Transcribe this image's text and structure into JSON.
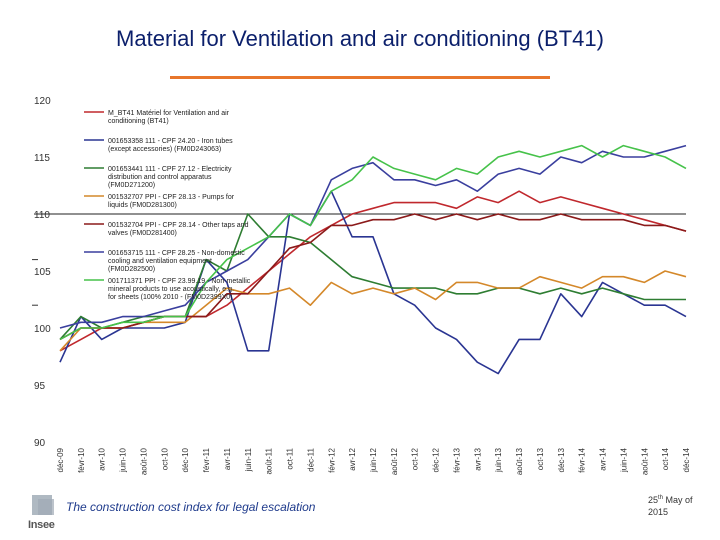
{
  "slide": {
    "title": "Material for Ventilation and air conditioning (BT41)",
    "footer_text": "The construction cost index for legal escalation",
    "logo_text": "Insee",
    "date_day": "25",
    "date_suffix": "th",
    "date_rest": " May of",
    "date_year": "2015"
  },
  "colors": {
    "title": "#0b1f6b",
    "accent_rule": "#e8762b"
  },
  "chart_data": {
    "type": "line",
    "title": "",
    "xlabel": "",
    "ylabel": "",
    "ylim": [
      90,
      120
    ],
    "yticks": [
      90,
      95,
      100,
      105,
      110,
      115,
      120
    ],
    "reference_line": 110,
    "x": [
      "déc-09",
      "févr-10",
      "avr-10",
      "juin-10",
      "août-10",
      "oct-10",
      "déc-10",
      "févr-11",
      "avr-11",
      "juin-11",
      "août-11",
      "oct-11",
      "déc-11",
      "févr-12",
      "avr-12",
      "juin-12",
      "août-12",
      "oct-12",
      "déc-12",
      "févr-13",
      "avr-13",
      "juin-13",
      "août-13",
      "oct-13",
      "déc-13",
      "févr-14",
      "avr-14",
      "juin-14",
      "août-14",
      "oct-14",
      "déc-14"
    ],
    "legend": [
      "M_BT41 Matériel for Ventilation and air conditioning (BT41)",
      "001653358 111 - CPF 24.20 - Iron tubes (except accessories) (FM0D243063)",
      "001653441 111 - CPF 27.12 - Electricity distribution and control apparatus (FM0D271200)",
      "001532707 PPI - CPF 28.13 - Pumps for liquids (FM0D281300)",
      "001532704 PPI - CPF 28.14 - Other taps and valves (FM0D281400)",
      "001653715 111 - CPF 28.25 - Non-domestic cooling and ventilation equipment (FM0D282500)",
      "001711371 PPI - CPF 23.99.19 - Non-metallic mineral products to use acoustically, e.g. for sheets (100% 2010 - (FM0D2399X0)"
    ],
    "series": [
      {
        "name": "M_BT41 Matériel for Ventilation and air conditioning (BT41)",
        "color": "#c0282d",
        "values": [
          98,
          99,
          100,
          100,
          100.5,
          101,
          101,
          101,
          102,
          103.5,
          105,
          106.5,
          108,
          109,
          110,
          110.5,
          111,
          111,
          111,
          110.5,
          111.5,
          111,
          112,
          111,
          111.5,
          111,
          110.5,
          110,
          109.5,
          109,
          108.5
        ]
      },
      {
        "name": "001653358 111 - CPF 24.20 - Iron tubes (except accessories) (FM0D243063)",
        "color": "#2a3592",
        "values": [
          97,
          101,
          99,
          100,
          100,
          100,
          100.5,
          106,
          104,
          98,
          98,
          110,
          109,
          112,
          108,
          108,
          103,
          102,
          100,
          99,
          97,
          96,
          99,
          99,
          103,
          101,
          104,
          103,
          102,
          102,
          101
        ]
      },
      {
        "name": "001653441 111 - CPF 27.12 - Electricity distribution and control apparatus (FM0D271200)",
        "color": "#2e7d32",
        "values": [
          99,
          101,
          100,
          100.5,
          101,
          101,
          101,
          106,
          105,
          110,
          108,
          108,
          107.5,
          106,
          104.5,
          104,
          103.5,
          103.5,
          103.5,
          103,
          103,
          103.5,
          103.5,
          103,
          103.5,
          103,
          103.5,
          103,
          102.5,
          102.5,
          102.5
        ]
      },
      {
        "name": "001532707 PPI - CPF 28.13 - Pumps for liquids (FM0D281300)",
        "color": "#d4882a",
        "values": [
          98,
          100,
          100,
          100,
          100.5,
          100.5,
          100.5,
          102,
          103.5,
          103,
          103,
          103.5,
          102,
          104,
          103,
          103.5,
          103,
          103.5,
          102.5,
          104,
          104,
          103.5,
          103.5,
          104.5,
          104,
          103.5,
          104.5,
          104.5,
          104,
          105,
          104.5
        ]
      },
      {
        "name": "001532704 PPI - CPF 28.14 - Other taps and valves (FM0D281400)",
        "color": "#8b1a1a",
        "values": [
          99,
          100,
          100,
          100,
          100.5,
          101,
          101,
          101,
          103,
          103,
          105,
          107,
          107.5,
          109,
          109,
          109.5,
          109.5,
          110,
          109.5,
          110,
          109.5,
          110,
          109.5,
          109.5,
          110,
          109.5,
          109.5,
          109.5,
          109,
          109,
          108.5
        ]
      },
      {
        "name": "001653715 111 - CPF 28.25 - Non-domestic cooling and ventilation equipment (FM0D282500)",
        "color": "#3a3f9e",
        "values": [
          100,
          100.5,
          100.5,
          101,
          101,
          101.5,
          102,
          104,
          105,
          106,
          108,
          110,
          109,
          113,
          114,
          114.5,
          113,
          113,
          112.5,
          113,
          112,
          113.5,
          114,
          113.5,
          115,
          114.5,
          115.5,
          115,
          115,
          115.5,
          116
        ]
      },
      {
        "name": "001711371 PPI - CPF 23.99.19 - Non-metallic mineral products to use acoustically, e.g. for sheets (100% 2010 - (FM0D2399X0)",
        "color": "#46c24a",
        "values": [
          99,
          100,
          100,
          100.5,
          100.5,
          101,
          101,
          104,
          106,
          107,
          108,
          110,
          109,
          112,
          113,
          115,
          114,
          113.5,
          113,
          114,
          113.5,
          115,
          115.5,
          115,
          115.5,
          116,
          115,
          116,
          115.5,
          115,
          114
        ]
      }
    ]
  }
}
